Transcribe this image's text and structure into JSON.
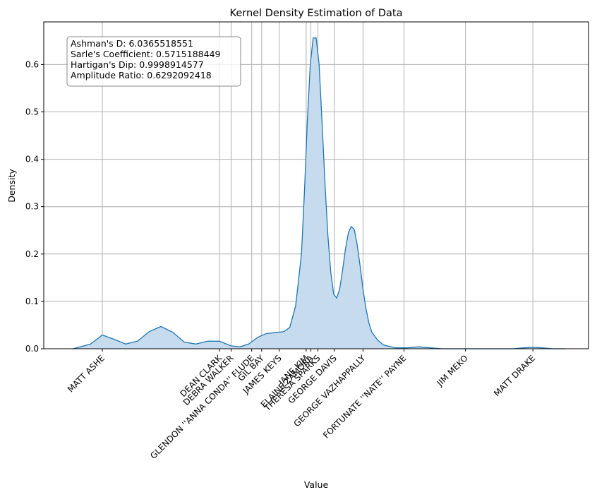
{
  "chart_data": {
    "type": "area",
    "title": "Kernel Density Estimation of Data",
    "xlabel": "Value",
    "ylabel": "Density",
    "ylim": [
      0,
      0.69
    ],
    "y_ticks": [
      0.0,
      0.1,
      0.2,
      0.3,
      0.4,
      0.5,
      0.6
    ],
    "grid": true,
    "series_color": "#1f77b4",
    "fill_color": "#c6dbed",
    "grid_color": "#b0b0b0",
    "x_tick_labels": [
      {
        "label": "MATT ASHE",
        "value": 0.1
      },
      {
        "label": "DEAN CLARK",
        "value": 0.3
      },
      {
        "label": "DEBRA WALKER",
        "value": 0.32
      },
      {
        "label": "GLENDON ''ANNA CONDA'' FLUDE",
        "value": 0.355
      },
      {
        "label": "GIL BAY",
        "value": 0.372
      },
      {
        "label": "JAMES KEYS",
        "value": 0.402
      },
      {
        "label": "JANE KIM",
        "value": 0.448
      },
      {
        "label": "ELAINE ZAMORA",
        "value": 0.456
      },
      {
        "label": "THERESA SPARKS",
        "value": 0.468
      },
      {
        "label": "GEORGE DAVIS",
        "value": 0.496
      },
      {
        "label": "GEORGE VAZHAPPALLY",
        "value": 0.545
      },
      {
        "label": "FORTUNATE ''NATE'' PAYNE",
        "value": 0.615
      },
      {
        "label": "JIM MEKO",
        "value": 0.72
      },
      {
        "label": "MATT DRAKE",
        "value": 0.835
      }
    ],
    "x": [
      0.05,
      0.08,
      0.1,
      0.12,
      0.14,
      0.16,
      0.18,
      0.2,
      0.22,
      0.24,
      0.26,
      0.28,
      0.3,
      0.32,
      0.335,
      0.35,
      0.365,
      0.38,
      0.395,
      0.41,
      0.42,
      0.43,
      0.44,
      0.445,
      0.45,
      0.455,
      0.46,
      0.465,
      0.47,
      0.475,
      0.48,
      0.485,
      0.49,
      0.495,
      0.5,
      0.505,
      0.51,
      0.515,
      0.52,
      0.525,
      0.53,
      0.535,
      0.54,
      0.545,
      0.55,
      0.555,
      0.56,
      0.57,
      0.58,
      0.6,
      0.62,
      0.64,
      0.66,
      0.68,
      0.7,
      0.72,
      0.75,
      0.78,
      0.8,
      0.82,
      0.835,
      0.85,
      0.87,
      0.89
    ],
    "y": [
      0.0,
      0.01,
      0.029,
      0.02,
      0.01,
      0.016,
      0.036,
      0.047,
      0.035,
      0.014,
      0.01,
      0.016,
      0.016,
      0.006,
      0.004,
      0.01,
      0.024,
      0.032,
      0.034,
      0.036,
      0.045,
      0.09,
      0.2,
      0.33,
      0.48,
      0.6,
      0.656,
      0.656,
      0.6,
      0.48,
      0.35,
      0.24,
      0.16,
      0.115,
      0.107,
      0.125,
      0.165,
      0.21,
      0.245,
      0.258,
      0.252,
      0.22,
      0.175,
      0.125,
      0.085,
      0.055,
      0.035,
      0.018,
      0.008,
      0.002,
      0.002,
      0.004,
      0.002,
      0.0,
      0.0,
      0.0,
      0.0,
      0.0,
      0.0,
      0.002,
      0.003,
      0.002,
      0.0,
      0.0
    ]
  },
  "stats_box": {
    "line1": "Ashman's D: 6.0365518551",
    "line2": "Sarle's Coefficient: 0.5715188449",
    "line3": "Hartigan's Dip: 0.9998914577",
    "line4": "Amplitude Ratio: 0.6292092418"
  }
}
